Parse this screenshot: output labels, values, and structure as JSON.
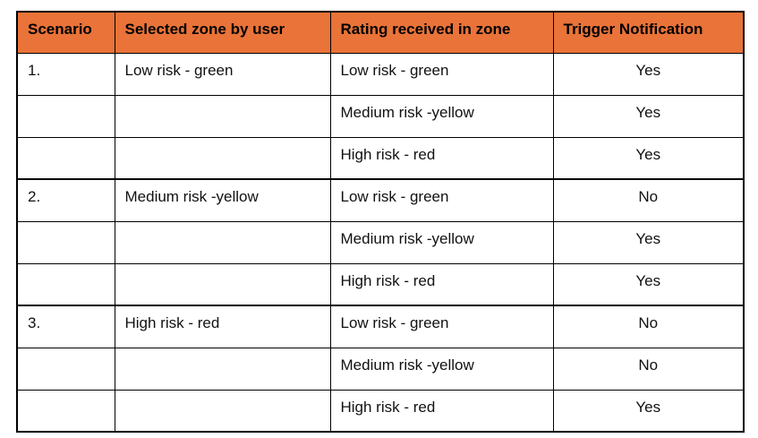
{
  "table": {
    "header_bg": "#E97338",
    "border_color": "#000000",
    "text_color": "#111111",
    "columns": [
      {
        "label": "Scenario",
        "align": "left"
      },
      {
        "label": "Selected zone by user",
        "align": "left"
      },
      {
        "label": "Rating received in zone",
        "align": "left"
      },
      {
        "label": "Trigger Notification",
        "align": "center"
      }
    ],
    "rows": [
      {
        "scenario": "1.",
        "selected_zone": "Low risk - green",
        "rating": "Low risk - green",
        "trigger": "Yes",
        "group_start": true
      },
      {
        "scenario": "",
        "selected_zone": "",
        "rating": "Medium risk -yellow",
        "trigger": "Yes",
        "group_start": false
      },
      {
        "scenario": "",
        "selected_zone": "",
        "rating": "High risk - red",
        "trigger": "Yes",
        "group_start": false
      },
      {
        "scenario": "2.",
        "selected_zone": "Medium risk -yellow",
        "rating": "Low risk - green",
        "trigger": "No",
        "group_start": true
      },
      {
        "scenario": "",
        "selected_zone": "",
        "rating": "Medium risk -yellow",
        "trigger": "Yes",
        "group_start": false
      },
      {
        "scenario": "",
        "selected_zone": "",
        "rating": "High risk - red",
        "trigger": "Yes",
        "group_start": false
      },
      {
        "scenario": "3.",
        "selected_zone": "High risk - red",
        "rating": "Low risk - green",
        "trigger": "No",
        "group_start": true
      },
      {
        "scenario": "",
        "selected_zone": "",
        "rating": "Medium risk -yellow",
        "trigger": "No",
        "group_start": false
      },
      {
        "scenario": "",
        "selected_zone": "",
        "rating": "High risk - red",
        "trigger": "Yes",
        "group_start": false
      }
    ]
  }
}
